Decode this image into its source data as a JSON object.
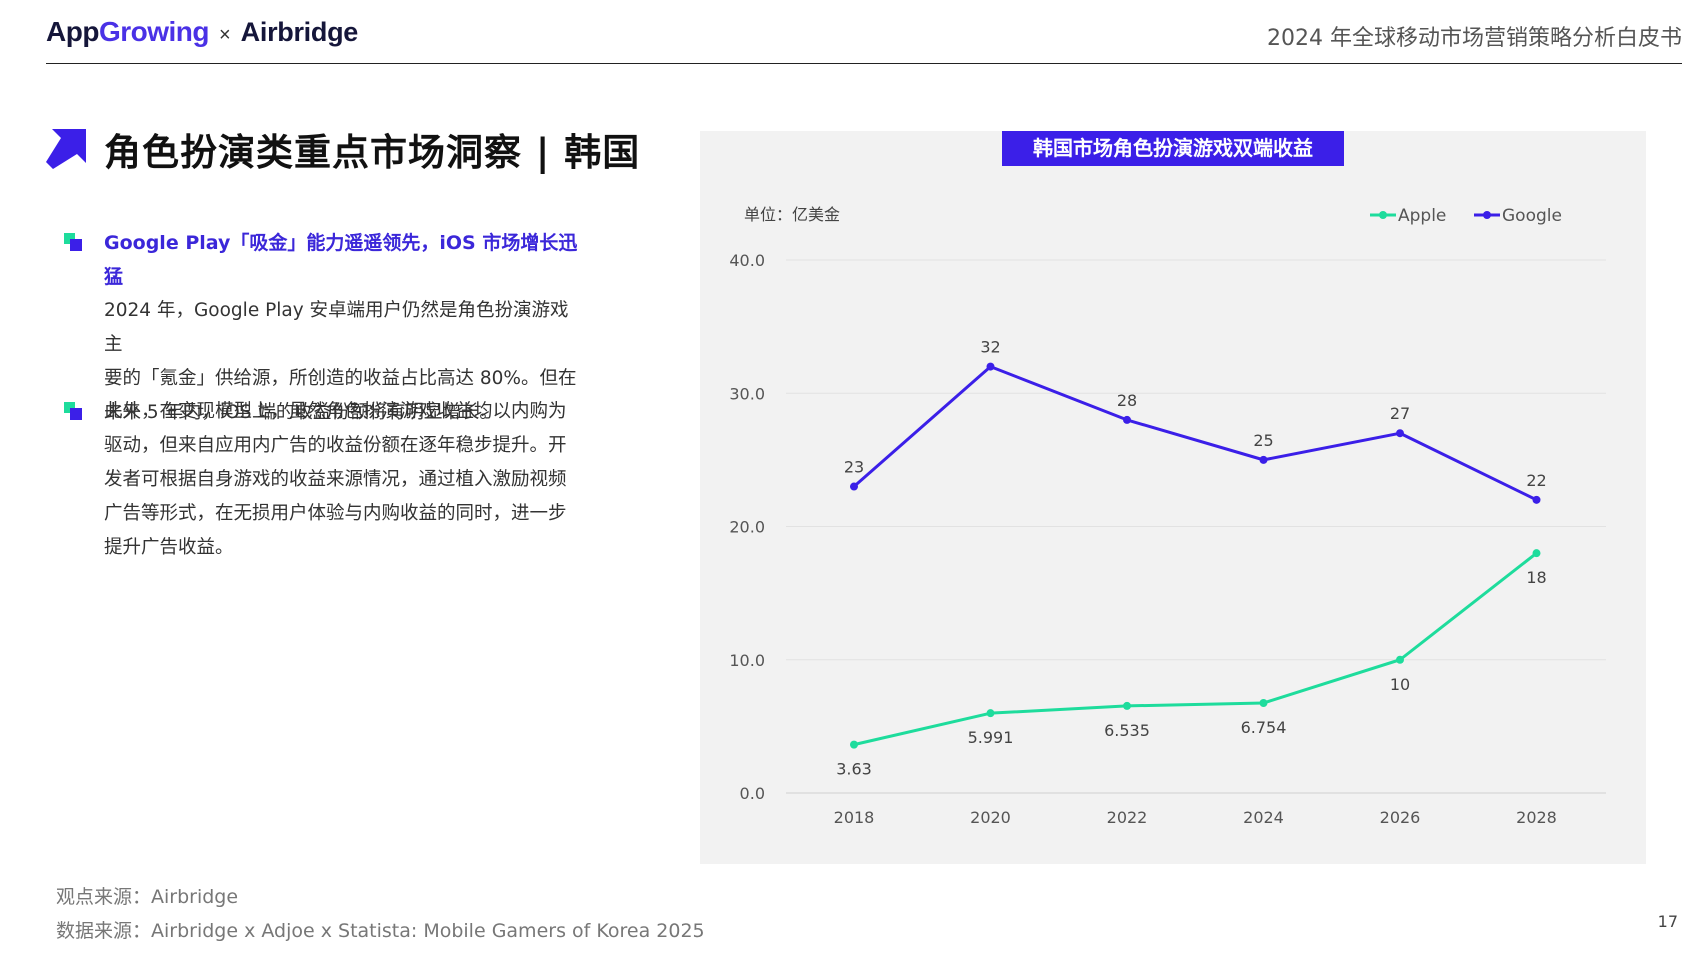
{
  "header": {
    "brand1_a": "App",
    "brand1_b": "Growing",
    "brand_sep": "×",
    "brand2": "Airbridge",
    "doc_title": "2024 年全球移动市场营销策略分析白皮书"
  },
  "page_title": "角色扮演类重点市场洞察 | 韩国",
  "bullets": [
    {
      "heading": "Google Play「吸金」能力遥遥领先，iOS 市场增长迅猛",
      "lines": [
        "2024 年，Google Play 安卓端用户仍然是角色扮演游戏主",
        "要的「氪金」供给源，所创造的收益占比高达 80%。但在",
        "未来 5 年内，iOS 端的收益份额将有明显增长。"
      ]
    },
    {
      "heading": "",
      "lines": [
        "此外，在变现模型上，虽然角色扮演游戏收益均以内购为",
        "驱动，但来自应用内广告的收益份额在逐年稳步提升。开",
        "发者可根据自身游戏的收益来源情况，通过植入激励视频",
        "广告等形式，在无损用户体验与内购收益的同时，进一步",
        "提升广告收益。"
      ]
    }
  ],
  "sources": {
    "opinion": "观点来源：Airbridge",
    "data": "数据来源：Airbridge x Adjoe x Statista: Mobile Gamers of Korea 2025"
  },
  "page_number": "17",
  "colors": {
    "apple": "#1edc9c",
    "google": "#3b1fe8",
    "accent": "#3b1fe8"
  },
  "chart_data": {
    "type": "line",
    "title": "韩国市场角色扮演游戏双端收益",
    "unit_label": "单位：亿美金",
    "x": [
      "2018",
      "2020",
      "2022",
      "2024",
      "2026",
      "2028"
    ],
    "ylim": [
      0,
      40
    ],
    "yticks": [
      "0.0",
      "10.0",
      "20.0",
      "30.0",
      "40.0"
    ],
    "legend_position": "top-right",
    "grid": true,
    "series": [
      {
        "name": "Apple",
        "values": [
          3.63,
          5.991,
          6.535,
          6.754,
          10,
          18
        ],
        "labels": [
          "3.63",
          "5.991",
          "6.535",
          "6.754",
          "10",
          "18"
        ],
        "label_pos": "below"
      },
      {
        "name": "Google",
        "values": [
          23,
          32,
          28,
          25,
          27,
          22
        ],
        "labels": [
          "23",
          "32",
          "28",
          "25",
          "27",
          "22"
        ],
        "label_pos": "above"
      }
    ]
  }
}
